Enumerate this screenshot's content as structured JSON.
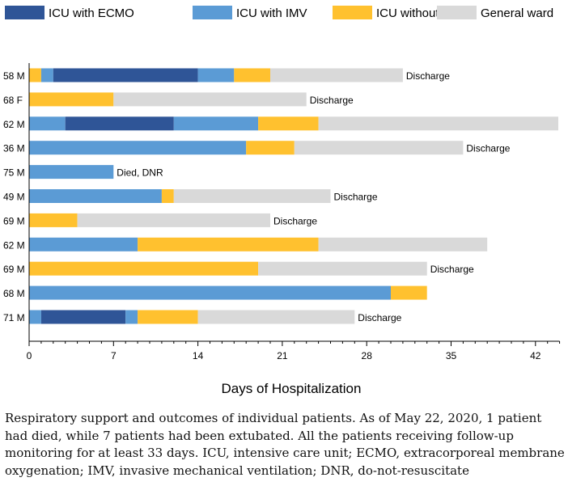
{
  "chart_data": {
    "type": "bar",
    "orientation": "horizontal",
    "stacked": true,
    "title": "",
    "xlabel": "Days of Hospitalization",
    "ylabel": "",
    "xlim": [
      0,
      44
    ],
    "xticks": [
      "0",
      "7",
      "14",
      "21",
      "28",
      "35",
      "42"
    ],
    "grid": false,
    "legend_placement": "top",
    "legend": [
      {
        "key": "ecmo",
        "label": "ICU with ECMO",
        "color": "#2f5597"
      },
      {
        "key": "imv",
        "label": "ICU with IMV",
        "color": "#5b9bd5"
      },
      {
        "key": "noimv",
        "label": "ICU without IMV",
        "color": "#ffc12f"
      },
      {
        "key": "ward",
        "label": "General ward",
        "color": "#d9d9d9"
      }
    ],
    "patients": [
      {
        "label": "58 M",
        "segments": [
          {
            "s": "noimv",
            "from": 0,
            "to": 1
          },
          {
            "s": "imv",
            "from": 1,
            "to": 2
          },
          {
            "s": "ecmo",
            "from": 2,
            "to": 14
          },
          {
            "s": "imv",
            "from": 14,
            "to": 17
          },
          {
            "s": "noimv",
            "from": 17,
            "to": 20
          },
          {
            "s": "ward",
            "from": 20,
            "to": 31
          }
        ],
        "outcome": "Discharge"
      },
      {
        "label": "68  F",
        "segments": [
          {
            "s": "noimv",
            "from": 0,
            "to": 7
          },
          {
            "s": "ward",
            "from": 7,
            "to": 23
          }
        ],
        "outcome": "Discharge"
      },
      {
        "label": "62 M",
        "segments": [
          {
            "s": "imv",
            "from": 0,
            "to": 3
          },
          {
            "s": "ecmo",
            "from": 3,
            "to": 12
          },
          {
            "s": "imv",
            "from": 12,
            "to": 19
          },
          {
            "s": "noimv",
            "from": 19,
            "to": 24
          },
          {
            "s": "ward",
            "from": 24,
            "to": 44
          }
        ],
        "outcome": ""
      },
      {
        "label": "36 M",
        "segments": [
          {
            "s": "imv",
            "from": 0,
            "to": 18
          },
          {
            "s": "noimv",
            "from": 18,
            "to": 22
          },
          {
            "s": "ward",
            "from": 22,
            "to": 36
          }
        ],
        "outcome": "Discharge"
      },
      {
        "label": "75 M",
        "segments": [
          {
            "s": "imv",
            "from": 0,
            "to": 7
          }
        ],
        "outcome": "Died, DNR"
      },
      {
        "label": "49 M",
        "segments": [
          {
            "s": "imv",
            "from": 0,
            "to": 11
          },
          {
            "s": "noimv",
            "from": 11,
            "to": 12
          },
          {
            "s": "ward",
            "from": 12,
            "to": 25
          }
        ],
        "outcome": "Discharge"
      },
      {
        "label": "69 M",
        "segments": [
          {
            "s": "noimv",
            "from": 0,
            "to": 4
          },
          {
            "s": "ward",
            "from": 4,
            "to": 20
          }
        ],
        "outcome": "Discharge"
      },
      {
        "label": "62 M",
        "segments": [
          {
            "s": "imv",
            "from": 0,
            "to": 9
          },
          {
            "s": "noimv",
            "from": 9,
            "to": 24
          },
          {
            "s": "ward",
            "from": 24,
            "to": 38
          }
        ],
        "outcome": ""
      },
      {
        "label": "69 M",
        "segments": [
          {
            "s": "noimv",
            "from": 0,
            "to": 19
          },
          {
            "s": "ward",
            "from": 19,
            "to": 33
          }
        ],
        "outcome": "Discharge"
      },
      {
        "label": "68 M",
        "segments": [
          {
            "s": "imv",
            "from": 0,
            "to": 30
          },
          {
            "s": "noimv",
            "from": 30,
            "to": 33
          }
        ],
        "outcome": ""
      },
      {
        "label": "71 M",
        "segments": [
          {
            "s": "imv",
            "from": 0,
            "to": 1
          },
          {
            "s": "ecmo",
            "from": 1,
            "to": 8
          },
          {
            "s": "imv",
            "from": 8,
            "to": 9
          },
          {
            "s": "noimv",
            "from": 9,
            "to": 14
          },
          {
            "s": "ward",
            "from": 14,
            "to": 27
          }
        ],
        "outcome": "Discharge"
      }
    ]
  },
  "caption": "Respiratory support and outcomes of individual patients. As of May 22, 2020, 1 patient had died, while 7 patients had been extubated. All the patients receiving follow-up monitoring for at least 33 days. ICU, intensive care unit; ECMO, extracorporeal membrane oxygenation; IMV, invasive mechanical ventilation; DNR, do-not-resuscitate"
}
